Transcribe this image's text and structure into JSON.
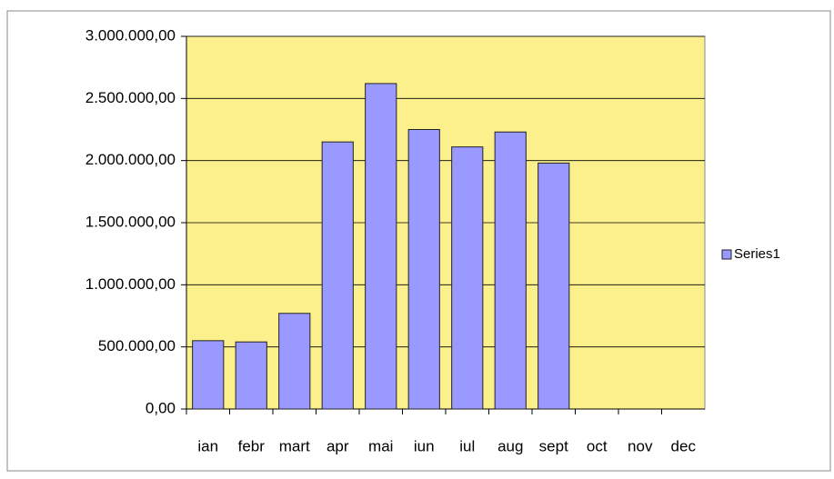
{
  "chart_data": {
    "type": "bar",
    "categories": [
      "ian",
      "febr",
      "mart",
      "apr",
      "mai",
      "iun",
      "iul",
      "aug",
      "sept",
      "oct",
      "nov",
      "dec"
    ],
    "series": [
      {
        "name": "Series1",
        "color": "#9999ff",
        "values": [
          550000,
          540000,
          770000,
          2150000,
          2620000,
          2250000,
          2110000,
          2230000,
          1980000,
          null,
          null,
          null
        ]
      }
    ],
    "ylim": [
      0,
      3000000
    ],
    "yticks": [
      {
        "value": 0,
        "label": "0,00"
      },
      {
        "value": 500000,
        "label": "500.000,00"
      },
      {
        "value": 1000000,
        "label": "1.000.000,00"
      },
      {
        "value": 1500000,
        "label": "1.500.000,00"
      },
      {
        "value": 2000000,
        "label": "2.000.000,00"
      },
      {
        "value": 2500000,
        "label": "2.500.000,00"
      },
      {
        "value": 3000000,
        "label": "3.000.000,00"
      }
    ],
    "grid": true,
    "legend": "right"
  }
}
